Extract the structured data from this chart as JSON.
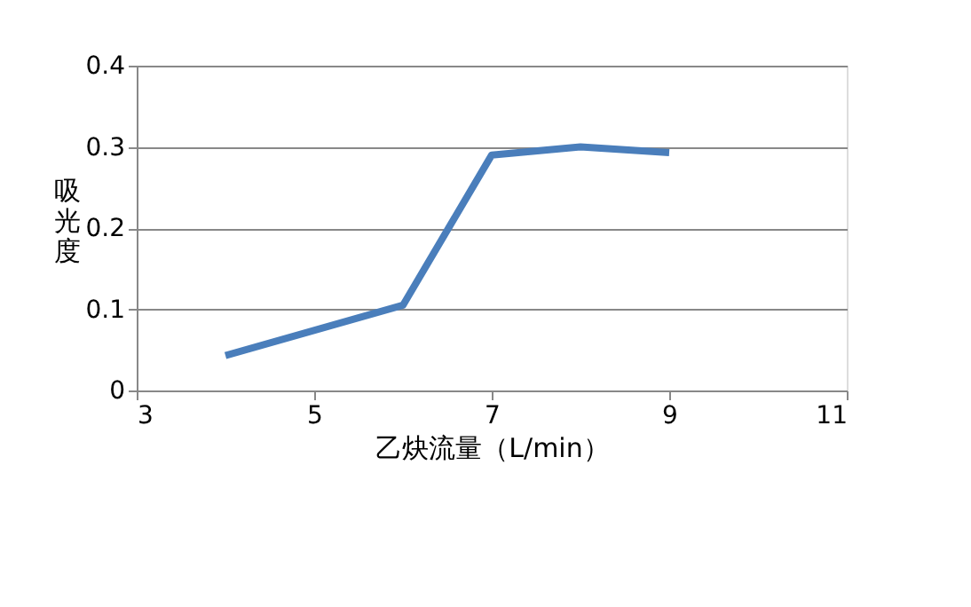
{
  "chart_data": {
    "type": "line",
    "xlabel": "乙炔流量（L/min）",
    "ylabel": "吸光度",
    "x": [
      4,
      6,
      7,
      8,
      9
    ],
    "series": [
      {
        "color": "#4a7ebb",
        "values": [
          0.043,
          0.105,
          0.29,
          0.3,
          0.293
        ]
      }
    ],
    "xlim": [
      3,
      11
    ],
    "xticks": [
      3,
      5,
      7,
      9,
      11
    ],
    "ylim": [
      0,
      0.4
    ],
    "yticks": [
      0,
      0.1,
      0.2,
      0.3,
      0.4
    ],
    "grid": "y",
    "marker": "none",
    "line_style": "solid"
  }
}
